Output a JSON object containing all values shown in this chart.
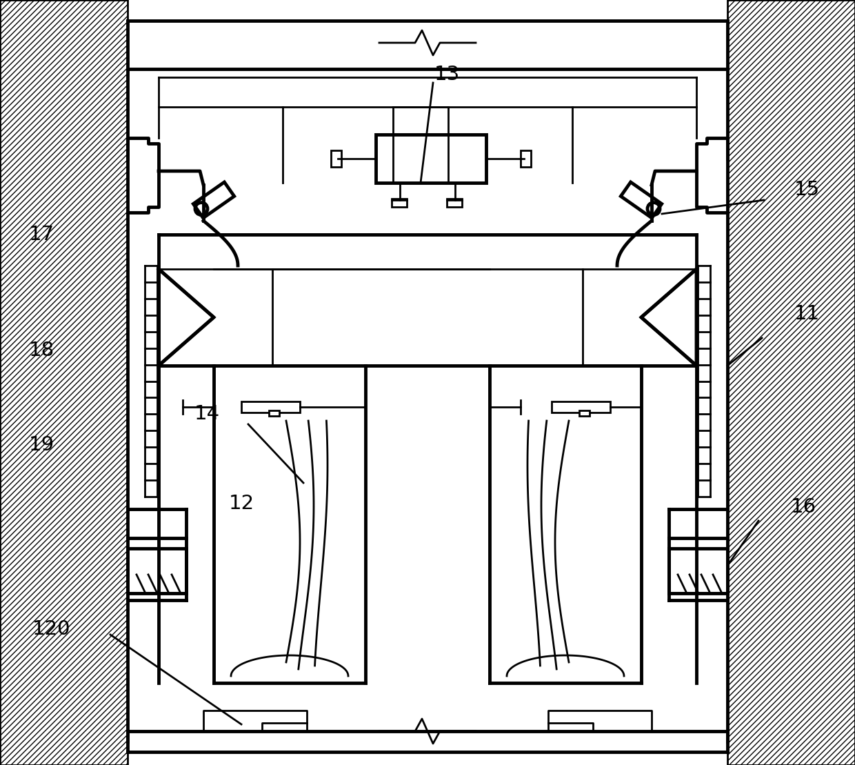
{
  "bg_color": "#ffffff",
  "line_color": "#000000",
  "lw": 2.0,
  "lw_thick": 3.5,
  "label_fontsize": 21
}
